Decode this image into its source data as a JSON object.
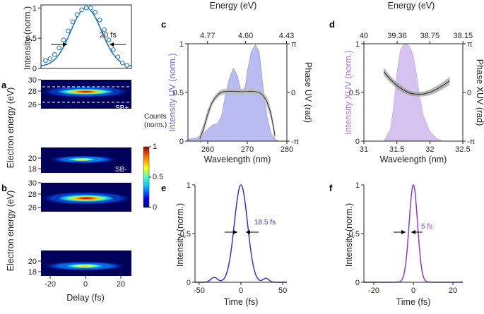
{
  "chart_data": [
    {
      "id": "top",
      "type": "scatter",
      "ylabel": "Intensity (norm.)",
      "yticks": [
        "0",
        "0.5",
        "1"
      ],
      "xlim": [
        -25,
        25
      ],
      "ylim": [
        0,
        1.05
      ],
      "points_x": [
        -22.5,
        -20,
        -17.5,
        -15,
        -12.5,
        -10,
        -7.5,
        -5,
        -2.5,
        0,
        2.5,
        5,
        7.5,
        10,
        12.5,
        15,
        17.5,
        20,
        22.5
      ],
      "points_y": [
        0.13,
        0.16,
        0.23,
        0.34,
        0.47,
        0.62,
        0.77,
        0.89,
        0.97,
        1.0,
        1.0,
        0.93,
        0.8,
        0.64,
        0.47,
        0.31,
        0.19,
        0.09,
        0.05
      ],
      "annotation": "20 fs",
      "fit_line_color": "#1f77b4",
      "marker_color": "#2a7ab9"
    },
    {
      "id": "a",
      "type": "heatmap",
      "panel_label": "a",
      "ylabel": "Electron energy (eV)",
      "yticks": [
        "18",
        "20",
        "26",
        "28",
        "30"
      ],
      "labels": [
        "SB+",
        "SB-"
      ],
      "colorbar": {
        "title": "Counts",
        "subtitle": "(norm.)",
        "ticks": [
          "0",
          "0.5",
          "1"
        ]
      }
    },
    {
      "id": "b",
      "type": "heatmap",
      "panel_label": "b",
      "ylabel": "Electron energy (eV)",
      "yticks": [
        "18",
        "20",
        "26",
        "28",
        "30"
      ],
      "xlabel": "Delay (fs)",
      "xticks": [
        "-20",
        "0",
        "20"
      ]
    },
    {
      "id": "c",
      "type": "area",
      "panel_label": "c",
      "xlabel": "Wavelength (nm)",
      "xticks": [
        "260",
        "270",
        "280"
      ],
      "xlim": [
        255,
        280
      ],
      "top_label": "Energy (eV)",
      "top_ticks": [
        "4.77",
        "4.60",
        "4.43"
      ],
      "ylabel": "Intensity UV (norm.)",
      "yticks": [
        "0",
        "0.5",
        "1"
      ],
      "ylabel_right": "Phase UV (rad)",
      "ylabel_right_ticks": [
        "π",
        "0",
        "-π"
      ],
      "spectrum_x": [
        255,
        257,
        259,
        260.5,
        261.5,
        262.5,
        263.5,
        264.5,
        265.5,
        266.5,
        267.5,
        268.5,
        269.5,
        270,
        271,
        272,
        273,
        274,
        275,
        276,
        277,
        278
      ],
      "spectrum_y": [
        0.02,
        0.03,
        0.08,
        0.14,
        0.17,
        0.18,
        0.26,
        0.48,
        0.65,
        0.75,
        0.67,
        0.5,
        0.56,
        0.72,
        0.92,
        0.99,
        0.92,
        0.55,
        0.25,
        0.08,
        0.02,
        0.0
      ],
      "phase_x": [
        258,
        259,
        260,
        261,
        262,
        263,
        264,
        265,
        266,
        267,
        268,
        269,
        270,
        271,
        272,
        273,
        274,
        275,
        276,
        277
      ],
      "phase_y": [
        -3.0,
        -2.3,
        -1.4,
        -0.7,
        -0.3,
        -0.05,
        0.05,
        0.07,
        0.08,
        0.07,
        0.06,
        0.05,
        0.06,
        0.08,
        0.06,
        0.0,
        -0.2,
        -0.6,
        -1.4,
        -2.8
      ],
      "fill_color": "#b8bcf0",
      "line_color": "#3a3aa0"
    },
    {
      "id": "d",
      "type": "area",
      "panel_label": "d",
      "xlabel": "Wavelength (nm)",
      "xticks": [
        "31",
        "31.5",
        "32",
        "32.5"
      ],
      "xlim": [
        31,
        32.5
      ],
      "top_label": "Energy (eV)",
      "top_ticks": [
        "40",
        "39.36",
        "38.75",
        "38.15"
      ],
      "ylabel": "Intensity XUV (norm.)",
      "yticks": [
        "0",
        "0.5",
        "1"
      ],
      "ylabel_right": "Phase XUV (rad)",
      "ylabel_right_ticks": [
        "π",
        "0",
        "-π"
      ],
      "spectrum_x": [
        31.3,
        31.4,
        31.45,
        31.5,
        31.55,
        31.6,
        31.65,
        31.7,
        31.75,
        31.8,
        31.85,
        31.9,
        32.0,
        32.1,
        32.2
      ],
      "spectrum_y": [
        0.0,
        0.12,
        0.35,
        0.7,
        0.93,
        0.99,
        1.0,
        0.97,
        0.88,
        0.68,
        0.45,
        0.27,
        0.1,
        0.03,
        0.0
      ],
      "phase_x": [
        31.3,
        31.4,
        31.5,
        31.6,
        31.7,
        31.8,
        31.9,
        32.0,
        32.1,
        32.2,
        32.3
      ],
      "phase_y": [
        1.35,
        0.85,
        0.45,
        0.15,
        -0.05,
        -0.12,
        -0.1,
        0.0,
        0.2,
        0.45,
        0.75
      ],
      "fill_color": "#d6c2ee",
      "line_color": "#a070d0"
    },
    {
      "id": "e",
      "type": "line",
      "panel_label": "e",
      "xlabel": "Time (fs)",
      "xticks": [
        "-50",
        "0",
        "50"
      ],
      "xlim": [
        -55,
        55
      ],
      "ylabel": "Intensity (norm.)",
      "yticks": [
        "0",
        "0.5",
        "1"
      ],
      "fwhm_label": "18.5 fs",
      "line_color": "#3434d0"
    },
    {
      "id": "f",
      "type": "line",
      "panel_label": "f",
      "xlabel": "Time (fs)",
      "xticks": [
        "-20",
        "0",
        "20"
      ],
      "xlim": [
        -25,
        25
      ],
      "ylabel": "Intensity (norm.)",
      "yticks": [
        "0",
        "0.5",
        "1"
      ],
      "fwhm_label": "5 fs",
      "line_color": "#8a3ad6"
    }
  ]
}
